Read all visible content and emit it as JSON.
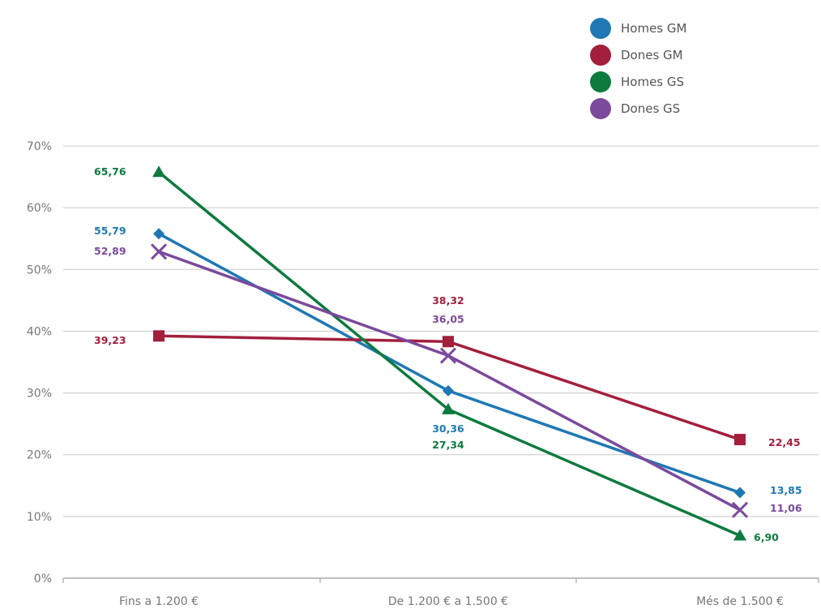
{
  "chart_data": {
    "type": "line",
    "categories": [
      "Fins a 1.200 €",
      "De 1.200 € a 1.500 €",
      "Més de 1.500 €"
    ],
    "ylim": [
      0,
      70
    ],
    "yticks": [
      "0%",
      "10%",
      "20%",
      "30%",
      "40%",
      "50%",
      "60%",
      "70%"
    ],
    "grid": true,
    "legend_position": "top-right",
    "series": [
      {
        "name": "Homes GM",
        "color": "#1f78b4",
        "marker": "diamond",
        "values": [
          55.79,
          30.36,
          13.85
        ],
        "labels": [
          "55,79",
          "30,36",
          "13,85"
        ]
      },
      {
        "name": "Dones GM",
        "color": "#a31f3c",
        "marker": "square",
        "values": [
          39.23,
          38.32,
          22.45
        ],
        "labels": [
          "39,23",
          "38,32",
          "22,45"
        ]
      },
      {
        "name": "Homes GS",
        "color": "#0d7a3e",
        "marker": "triangle",
        "values": [
          65.76,
          27.34,
          6.9
        ],
        "labels": [
          "65,76",
          "27,34",
          "6,90"
        ]
      },
      {
        "name": "Dones GS",
        "color": "#7b4a9c",
        "marker": "x",
        "values": [
          52.89,
          36.05,
          11.06
        ],
        "labels": [
          "52,89",
          "36,05",
          "11,06"
        ]
      }
    ]
  }
}
